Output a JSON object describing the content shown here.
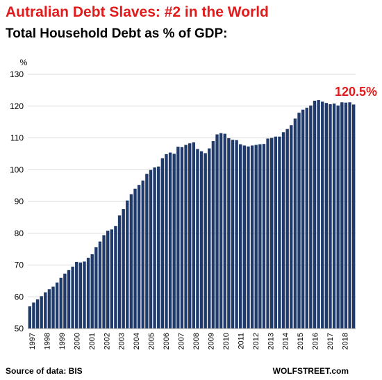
{
  "header": {
    "title": "Autralian  Debt Slaves: #2 in the World",
    "subtitle": "Total Household Debt as % of GDP:"
  },
  "footer": {
    "source": "Source of data: BIS",
    "brand": "WOLFSTREET.com"
  },
  "chart_data": {
    "type": "bar",
    "ylabel": "%",
    "ylim": [
      50,
      130
    ],
    "yticks": [
      50,
      60,
      70,
      80,
      90,
      100,
      110,
      120,
      130
    ],
    "grid": true,
    "bar_color": "#1f3a6b",
    "callout": {
      "text": "120.5%",
      "value": 120.5,
      "color": "#e11b1b"
    },
    "year_labels": [
      "1997",
      "1998",
      "1999",
      "2000",
      "2001",
      "2002",
      "2003",
      "2004",
      "2005",
      "2006",
      "2007",
      "2008",
      "2009",
      "2010",
      "2011",
      "2012",
      "2013",
      "2014",
      "2015",
      "2016",
      "2017",
      "2018"
    ],
    "values": [
      57.0,
      58.2,
      59.2,
      60.2,
      61.4,
      62.4,
      63.2,
      64.5,
      66.0,
      67.3,
      68.4,
      69.5,
      71.0,
      70.8,
      71.1,
      72.3,
      73.4,
      75.6,
      77.4,
      79.4,
      80.8,
      81.2,
      82.3,
      85.6,
      87.6,
      90.3,
      92.3,
      94.0,
      95.2,
      96.6,
      98.7,
      99.9,
      100.7,
      101.0,
      103.6,
      104.9,
      105.4,
      105.0,
      107.2,
      107.1,
      107.8,
      108.3,
      108.6,
      106.5,
      105.8,
      105.2,
      106.7,
      109.0,
      111.1,
      111.5,
      111.3,
      109.9,
      109.4,
      109.3,
      108.0,
      107.6,
      107.3,
      107.6,
      107.8,
      108.0,
      108.1,
      109.8,
      110.0,
      110.4,
      110.4,
      111.8,
      112.8,
      114.0,
      116.1,
      117.9,
      118.9,
      119.5,
      120.2,
      121.7,
      121.9,
      121.4,
      121.0,
      120.6,
      120.8,
      120.2,
      121.2,
      121.1,
      121.2,
      120.5
    ]
  }
}
